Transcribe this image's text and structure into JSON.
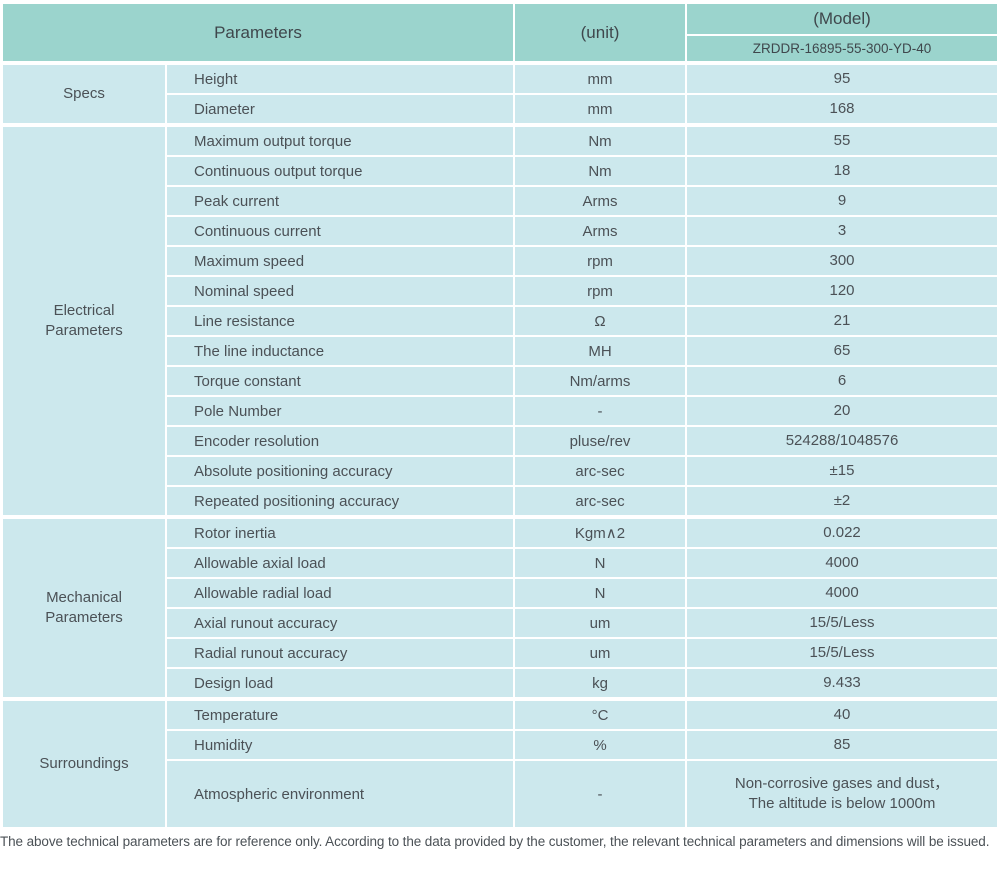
{
  "colors": {
    "header_bg": "#9bd4cd",
    "cell_bg": "#cce8ed",
    "text": "#4b5156",
    "border": "#ffffff"
  },
  "header": {
    "parameters_label": "Parameters",
    "unit_label": "(unit)",
    "model_label": "(Model)",
    "model_value": "ZRDDR-16895-55-300-YD-40"
  },
  "sections": [
    {
      "name": "Specs",
      "rows": [
        {
          "param": "Height",
          "unit": "mm",
          "value": "95"
        },
        {
          "param": "Diameter",
          "unit": "mm",
          "value": "168"
        }
      ]
    },
    {
      "name": "Electrical Parameters",
      "rows": [
        {
          "param": "Maximum output torque",
          "unit": "Nm",
          "value": "55"
        },
        {
          "param": "Continuous output torque",
          "unit": "Nm",
          "value": "18"
        },
        {
          "param": "Peak current",
          "unit": "Arms",
          "value": "9"
        },
        {
          "param": "Continuous current",
          "unit": "Arms",
          "value": "3"
        },
        {
          "param": "Maximum speed",
          "unit": "rpm",
          "value": "300"
        },
        {
          "param": "Nominal speed",
          "unit": "rpm",
          "value": "120"
        },
        {
          "param": "Line resistance",
          "unit": "Ω",
          "value": "21"
        },
        {
          "param": "The line inductance",
          "unit": "MH",
          "value": "65"
        },
        {
          "param": "Torque constant",
          "unit": "Nm/arms",
          "value": "6"
        },
        {
          "param": "Pole Number",
          "unit": "-",
          "value": "20"
        },
        {
          "param": "Encoder resolution",
          "unit": "pluse/rev",
          "value": "524288/1048576"
        },
        {
          "param": "Absolute positioning accuracy",
          "unit": "arc-sec",
          "value": "±15"
        },
        {
          "param": "Repeated positioning accuracy",
          "unit": "arc-sec",
          "value": "±2"
        }
      ]
    },
    {
      "name": "Mechanical Parameters",
      "rows": [
        {
          "param": "Rotor inertia",
          "unit": "Kgm∧2",
          "value": "0.022"
        },
        {
          "param": "Allowable axial load",
          "unit": "N",
          "value": "4000"
        },
        {
          "param": "Allowable radial load",
          "unit": "N",
          "value": "4000"
        },
        {
          "param": "Axial runout accuracy",
          "unit": "um",
          "value": "15/5/Less"
        },
        {
          "param": "Radial runout accuracy",
          "unit": "um",
          "value": "15/5/Less"
        },
        {
          "param": "Design load",
          "unit": "kg",
          "value": "9.433"
        }
      ]
    },
    {
      "name": "Surroundings",
      "rows": [
        {
          "param": "Temperature",
          "unit": "°C",
          "value": "40"
        },
        {
          "param": "Humidity",
          "unit": "%",
          "value": "85"
        },
        {
          "param": "Atmospheric environment",
          "unit": "-",
          "value": "Non-corrosive gases and dust，\nThe altitude is below 1000m",
          "tall": true
        }
      ]
    }
  ],
  "footer": {
    "note": "The above technical parameters are for reference only. According to the data provided by the customer, the relevant technical parameters and dimensions will be issued."
  }
}
